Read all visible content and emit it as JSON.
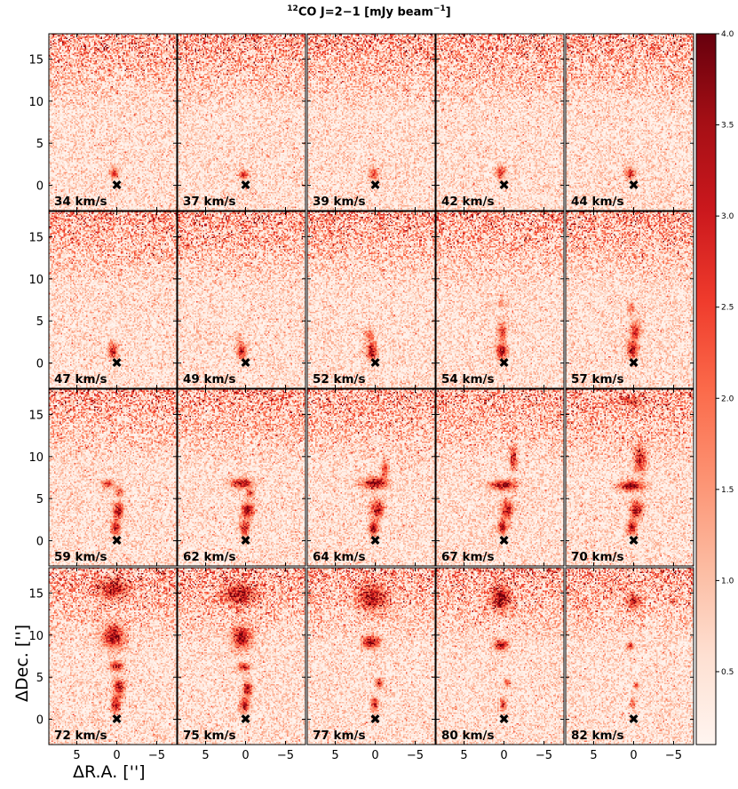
{
  "chart_data": {
    "type": "heatmap",
    "title_main": "12CO J=2−1 [mJy beam−1]",
    "title_parts": {
      "sup1": "12",
      "mid": "CO J=2−1 [mJy beam",
      "sup2": "−1",
      "end": "]"
    },
    "xlabel": "ΔR.A. ['']",
    "ylabel": "ΔDec. ['']",
    "xlim": [
      8.5,
      -7.5
    ],
    "ylim": [
      -3,
      18
    ],
    "xticks": [
      5,
      0,
      -5
    ],
    "xtick_labels": [
      "5",
      "0",
      "−5"
    ],
    "yticks": [
      0,
      5,
      10,
      15
    ],
    "ytick_labels": [
      "0",
      "5",
      "10",
      "15"
    ],
    "colormap": "Reds",
    "colorbar": {
      "vmin": 0.1,
      "vmax": 4.0,
      "ticks": [
        0.5,
        1.0,
        1.5,
        2.0,
        2.5,
        3.0,
        3.5,
        4.0
      ],
      "tick_labels": [
        "0.5",
        "1.0",
        "1.5",
        "2.0",
        "2.5",
        "3.0",
        "3.5",
        "4.0"
      ]
    },
    "grid": {
      "rows": 4,
      "cols": 5
    },
    "source_marker": {
      "symbol": "✖",
      "x": 0,
      "y": 0
    },
    "channels": [
      "34 km/s",
      "37 km/s",
      "39 km/s",
      "42 km/s",
      "44 km/s",
      "47 km/s",
      "49 km/s",
      "52 km/s",
      "54 km/s",
      "57 km/s",
      "59 km/s",
      "62 km/s",
      "64 km/s",
      "67 km/s",
      "70 km/s",
      "72 km/s",
      "75 km/s",
      "77 km/s",
      "80 km/s",
      "82 km/s"
    ],
    "emission_blobs": [
      [
        {
          "x": 0.3,
          "y": 1.5,
          "sx": 0.6,
          "sy": 0.7,
          "a": 0.7
        }
      ],
      [
        {
          "x": 0.2,
          "y": 1.3,
          "sx": 0.6,
          "sy": 0.6,
          "a": 0.7
        }
      ],
      [
        {
          "x": 0.2,
          "y": 1.3,
          "sx": 0.6,
          "sy": 0.7,
          "a": 0.7
        }
      ],
      [
        {
          "x": 0.4,
          "y": 1.5,
          "sx": 0.6,
          "sy": 0.8,
          "a": 0.7
        }
      ],
      [
        {
          "x": 0.4,
          "y": 1.5,
          "sx": 0.6,
          "sy": 0.8,
          "a": 0.7
        }
      ],
      [
        {
          "x": 0.5,
          "y": 1.5,
          "sx": 0.6,
          "sy": 1.0,
          "a": 0.8
        }
      ],
      [
        {
          "x": 0.5,
          "y": 1.4,
          "sx": 0.6,
          "sy": 1.0,
          "a": 0.8
        },
        {
          "x": 0.8,
          "y": 3.0,
          "sx": 0.4,
          "sy": 0.7,
          "a": 0.3
        }
      ],
      [
        {
          "x": 0.4,
          "y": 1.4,
          "sx": 0.7,
          "sy": 1.0,
          "a": 0.9
        },
        {
          "x": 0.6,
          "y": 3.3,
          "sx": 0.5,
          "sy": 0.8,
          "a": 0.5
        }
      ],
      [
        {
          "x": 0.3,
          "y": 1.4,
          "sx": 0.7,
          "sy": 1.0,
          "a": 0.9
        },
        {
          "x": 0.2,
          "y": 3.8,
          "sx": 0.6,
          "sy": 1.2,
          "a": 0.6
        },
        {
          "x": 0.3,
          "y": 7.0,
          "sx": 0.4,
          "sy": 0.5,
          "a": 0.4
        }
      ],
      [
        {
          "x": 0.2,
          "y": 1.6,
          "sx": 0.7,
          "sy": 1.0,
          "a": 0.9
        },
        {
          "x": -0.2,
          "y": 3.8,
          "sx": 0.7,
          "sy": 1.3,
          "a": 0.7
        },
        {
          "x": 0.3,
          "y": 6.6,
          "sx": 0.5,
          "sy": 0.6,
          "a": 0.5
        }
      ],
      [
        {
          "x": 0.1,
          "y": 1.5,
          "sx": 0.6,
          "sy": 0.9,
          "a": 0.9
        },
        {
          "x": -0.2,
          "y": 3.6,
          "sx": 0.7,
          "sy": 1.0,
          "a": 0.9
        },
        {
          "x": 1.1,
          "y": 6.7,
          "sx": 0.8,
          "sy": 0.5,
          "a": 0.8
        },
        {
          "x": -0.3,
          "y": 5.8,
          "sx": 0.5,
          "sy": 0.6,
          "a": 0.6
        }
      ],
      [
        {
          "x": 0.1,
          "y": 1.5,
          "sx": 0.6,
          "sy": 0.9,
          "a": 0.9
        },
        {
          "x": -0.3,
          "y": 3.6,
          "sx": 0.8,
          "sy": 1.0,
          "a": 0.9
        },
        {
          "x": 0.5,
          "y": 6.8,
          "sx": 1.4,
          "sy": 0.6,
          "a": 1.0
        },
        {
          "x": -0.6,
          "y": 5.6,
          "sx": 0.5,
          "sy": 0.5,
          "a": 0.7
        }
      ],
      [
        {
          "x": 0.2,
          "y": 1.5,
          "sx": 0.6,
          "sy": 0.9,
          "a": 0.9
        },
        {
          "x": -0.3,
          "y": 3.7,
          "sx": 0.8,
          "sy": 1.1,
          "a": 0.9
        },
        {
          "x": 0.1,
          "y": 6.8,
          "sx": 1.6,
          "sy": 0.7,
          "a": 1.0
        },
        {
          "x": -1.2,
          "y": 8.5,
          "sx": 0.5,
          "sy": 1.2,
          "a": 0.6
        }
      ],
      [
        {
          "x": 0.2,
          "y": 1.6,
          "sx": 0.6,
          "sy": 0.9,
          "a": 0.9
        },
        {
          "x": -0.4,
          "y": 3.7,
          "sx": 0.8,
          "sy": 1.1,
          "a": 0.9
        },
        {
          "x": 0.1,
          "y": 6.6,
          "sx": 1.7,
          "sy": 0.6,
          "a": 1.0
        },
        {
          "x": -1.2,
          "y": 9.8,
          "sx": 0.5,
          "sy": 1.5,
          "a": 0.7
        }
      ],
      [
        {
          "x": 0.2,
          "y": 1.6,
          "sx": 0.6,
          "sy": 0.9,
          "a": 0.9
        },
        {
          "x": -0.4,
          "y": 3.7,
          "sx": 0.8,
          "sy": 1.1,
          "a": 0.9
        },
        {
          "x": 0.3,
          "y": 6.5,
          "sx": 1.6,
          "sy": 0.6,
          "a": 1.0
        },
        {
          "x": -0.8,
          "y": 9.6,
          "sx": 0.8,
          "sy": 1.6,
          "a": 0.8
        },
        {
          "x": 0.2,
          "y": 16.5,
          "sx": 2.0,
          "sy": 0.6,
          "a": 0.4
        }
      ],
      [
        {
          "x": 0.1,
          "y": 1.7,
          "sx": 0.6,
          "sy": 1.0,
          "a": 0.9
        },
        {
          "x": -0.3,
          "y": 3.8,
          "sx": 0.7,
          "sy": 1.0,
          "a": 0.9
        },
        {
          "x": 0.0,
          "y": 6.3,
          "sx": 0.8,
          "sy": 0.6,
          "a": 0.9
        },
        {
          "x": 0.4,
          "y": 9.8,
          "sx": 1.4,
          "sy": 1.5,
          "a": 0.9
        },
        {
          "x": 0.5,
          "y": 15.5,
          "sx": 2.0,
          "sy": 1.3,
          "a": 0.7
        }
      ],
      [
        {
          "x": 0.1,
          "y": 1.7,
          "sx": 0.6,
          "sy": 0.9,
          "a": 0.9
        },
        {
          "x": -0.3,
          "y": 3.6,
          "sx": 0.6,
          "sy": 0.9,
          "a": 0.9
        },
        {
          "x": 0.2,
          "y": 6.2,
          "sx": 0.8,
          "sy": 0.5,
          "a": 0.8
        },
        {
          "x": 0.5,
          "y": 9.7,
          "sx": 1.3,
          "sy": 1.4,
          "a": 0.9
        },
        {
          "x": 0.8,
          "y": 14.8,
          "sx": 2.0,
          "sy": 1.3,
          "a": 0.8
        }
      ],
      [
        {
          "x": 0.1,
          "y": 1.8,
          "sx": 0.5,
          "sy": 0.8,
          "a": 0.8
        },
        {
          "x": -0.5,
          "y": 4.3,
          "sx": 0.5,
          "sy": 0.6,
          "a": 0.8
        },
        {
          "x": 0.5,
          "y": 9.2,
          "sx": 1.1,
          "sy": 0.8,
          "a": 1.0
        },
        {
          "x": 0.3,
          "y": 14.4,
          "sx": 1.8,
          "sy": 1.5,
          "a": 0.8
        }
      ],
      [
        {
          "x": 0.1,
          "y": 1.8,
          "sx": 0.4,
          "sy": 0.8,
          "a": 0.8
        },
        {
          "x": -0.4,
          "y": 4.3,
          "sx": 0.4,
          "sy": 0.5,
          "a": 0.6
        },
        {
          "x": 0.4,
          "y": 8.8,
          "sx": 0.9,
          "sy": 0.6,
          "a": 1.0
        },
        {
          "x": 0.4,
          "y": 14.3,
          "sx": 1.2,
          "sy": 1.5,
          "a": 0.9
        }
      ],
      [
        {
          "x": 0.1,
          "y": 1.9,
          "sx": 0.3,
          "sy": 0.6,
          "a": 0.6
        },
        {
          "x": -0.4,
          "y": 4.0,
          "sx": 0.4,
          "sy": 0.5,
          "a": 0.5
        },
        {
          "x": 0.4,
          "y": 8.7,
          "sx": 0.5,
          "sy": 0.4,
          "a": 0.8
        },
        {
          "x": 0.0,
          "y": 14.0,
          "sx": 0.9,
          "sy": 1.0,
          "a": 0.6
        }
      ]
    ]
  }
}
